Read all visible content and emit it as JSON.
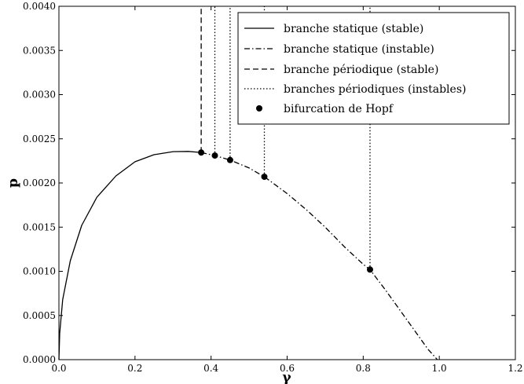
{
  "chart_data": {
    "type": "line",
    "title": "",
    "xlabel": "γ",
    "ylabel": "p",
    "xlim": [
      0.0,
      1.2
    ],
    "ylim": [
      0.0,
      0.004
    ],
    "grid": false,
    "legend_position": "top-right",
    "x_ticks": [
      "0.0",
      "0.2",
      "0.4",
      "0.6",
      "0.8",
      "1.0",
      "1.2"
    ],
    "y_ticks": [
      "0.0000",
      "0.0005",
      "0.0010",
      "0.0015",
      "0.0020",
      "0.0025",
      "0.0030",
      "0.0035",
      "0.0040"
    ],
    "series": [
      {
        "name": "branche statique (stable)",
        "style": "solid",
        "x": [
          0.0,
          0.002,
          0.01,
          0.03,
          0.06,
          0.1,
          0.15,
          0.2,
          0.25,
          0.3,
          0.34,
          0.374
        ],
        "y": [
          0.0,
          0.0003,
          0.00068,
          0.00112,
          0.00152,
          0.00184,
          0.00208,
          0.00224,
          0.00232,
          0.002355,
          0.002357,
          0.002345
        ]
      },
      {
        "name": "branche statique (instable)",
        "style": "dashdot",
        "x": [
          0.374,
          0.41,
          0.45,
          0.5,
          0.54,
          0.6,
          0.65,
          0.7,
          0.75,
          0.8,
          0.818,
          0.86,
          0.9,
          0.94,
          0.97,
          0.995
        ],
        "y": [
          0.002345,
          0.00231,
          0.00226,
          0.00217,
          0.00207,
          0.00188,
          0.0017,
          0.0015,
          0.00128,
          0.00108,
          0.00102,
          0.00078,
          0.00054,
          0.0003,
          0.00012,
          0.0
        ]
      },
      {
        "name": "branche périodique (stable)",
        "style": "dashed",
        "x": [
          0.374,
          0.374
        ],
        "y": [
          0.002345,
          0.004
        ]
      },
      {
        "name": "branches périodiques (instables)",
        "style": "dotted",
        "segments": [
          {
            "x": [
              0.41,
              0.41
            ],
            "y": [
              0.00231,
              0.004
            ]
          },
          {
            "x": [
              0.45,
              0.45
            ],
            "y": [
              0.00226,
              0.004
            ]
          },
          {
            "x": [
              0.54,
              0.54
            ],
            "y": [
              0.00207,
              0.004
            ]
          },
          {
            "x": [
              0.818,
              0.818
            ],
            "y": [
              0.00102,
              0.004
            ]
          }
        ]
      },
      {
        "name": "bifurcation de Hopf",
        "style": "marker",
        "x": [
          0.374,
          0.41,
          0.45,
          0.54,
          0.818
        ],
        "y": [
          0.002345,
          0.00231,
          0.00226,
          0.00207,
          0.00102
        ]
      }
    ]
  }
}
